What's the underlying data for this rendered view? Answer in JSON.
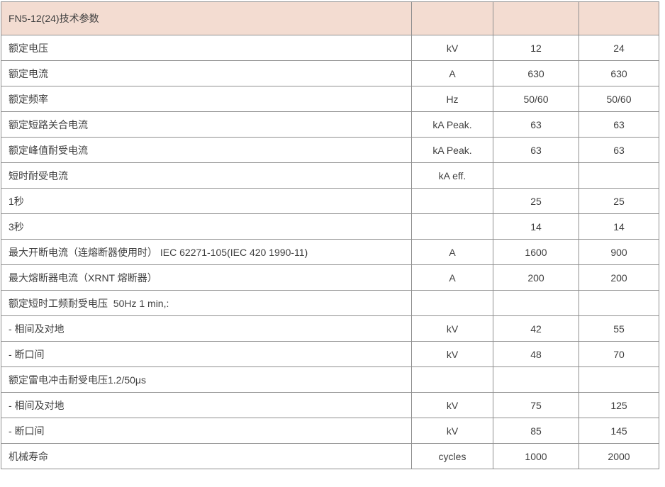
{
  "table": {
    "title": "FN5-12(24)技术参数",
    "colors": {
      "header_bg": "#f3dcd1",
      "border": "#8f8f8f",
      "text": "#3f3f3f"
    },
    "rows": [
      {
        "label": "额定电压",
        "unit": "kV",
        "v12": "12",
        "v24": "24"
      },
      {
        "label": "额定电流",
        "unit": "A",
        "v12": "630",
        "v24": "630"
      },
      {
        "label": "额定频率",
        "unit": "Hz",
        "v12": "50/60",
        "v24": "50/60"
      },
      {
        "label": "额定短路关合电流",
        "unit": "kA Peak.",
        "v12": "63",
        "v24": "63"
      },
      {
        "label": "额定峰值耐受电流",
        "unit": "kA Peak.",
        "v12": "63",
        "v24": "63"
      },
      {
        "label": "短时耐受电流",
        "unit": "kA eff.",
        "v12": "",
        "v24": ""
      },
      {
        "label": "1秒",
        "unit": "",
        "v12": "25",
        "v24": "25"
      },
      {
        "label": "3秒",
        "unit": "",
        "v12": "14",
        "v24": "14"
      },
      {
        "label": "最大开断电流（连熔断器使用时） IEC 62271-105(IEC 420 1990-11)",
        "unit": "A",
        "v12": "1600",
        "v24": "900"
      },
      {
        "label": "最大熔断器电流（XRNT 熔断器）",
        "unit": "A",
        "v12": "200",
        "v24": "200"
      },
      {
        "label": "额定短时工频耐受电压  50Hz 1 min,:",
        "unit": "",
        "v12": "",
        "v24": ""
      },
      {
        "label": "- 相间及对地",
        "unit": "kV",
        "v12": "42",
        "v24": "55"
      },
      {
        "label": "- 断口间",
        "unit": "kV",
        "v12": "48",
        "v24": "70"
      },
      {
        "label": "额定雷电冲击耐受电压1.2/50μs",
        "unit": "",
        "v12": "",
        "v24": ""
      },
      {
        "label": "- 相间及对地",
        "unit": "kV",
        "v12": "75",
        "v24": "125"
      },
      {
        "label": "- 断口间",
        "unit": "kV",
        "v12": "85",
        "v24": "145"
      },
      {
        "label": "机械寿命",
        "unit": "cycles",
        "v12": "1000",
        "v24": "2000"
      }
    ]
  }
}
